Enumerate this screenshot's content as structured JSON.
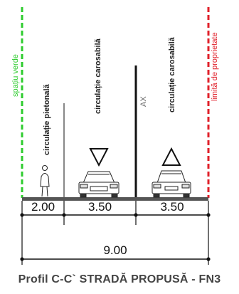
{
  "labels": {
    "left_boundary": "spațiu verde",
    "right_boundary": "limită de proprietate",
    "sidewalk": "circulație pietonală",
    "lane_left": "circulație carosabilă",
    "lane_right": "circulație carosabilă",
    "axis": "AX"
  },
  "dimensions": {
    "sidewalk": "2.00",
    "lane_left": "3.50",
    "lane_right": "3.50",
    "total": "9.00"
  },
  "title": "Profil C-C` STRADĂ PROPUSĂ - FN3",
  "colors": {
    "green_boundary": "#2ecc2e",
    "red_boundary": "#e0202a",
    "ground": "#555555",
    "line": "#111111"
  },
  "icons": [
    "pedestrian-icon",
    "yield-triangle-down-icon",
    "car-front-icon",
    "yield-triangle-up-icon",
    "car-rear-icon"
  ]
}
